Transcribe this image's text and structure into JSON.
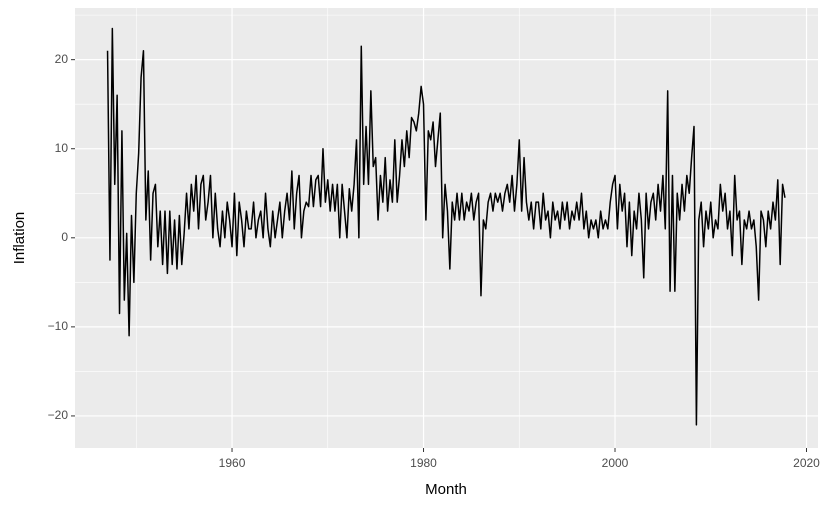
{
  "chart_data": {
    "type": "line",
    "xlabel": "Month",
    "ylabel": "Inflation",
    "xlim": [
      1943.6,
      2021.2
    ],
    "ylim": [
      -23.6,
      25.8
    ],
    "xticks": [
      1960,
      1980,
      2000,
      2020
    ],
    "xminorticks": [
      1950,
      1970,
      1990,
      2010
    ],
    "yticks": [
      {
        "value": -20,
        "label": "−20"
      },
      {
        "value": -10,
        "label": "−10"
      },
      0,
      10,
      20
    ],
    "yminorticks": [
      -15,
      -5,
      5,
      15,
      25
    ],
    "grid": true,
    "series": [
      {
        "color": "#000000",
        "x": [
          1947,
          1947.25,
          1947.5,
          1947.75,
          1948,
          1948.25,
          1948.5,
          1948.75,
          1949,
          1949.25,
          1949.5,
          1949.75,
          1950,
          1950.25,
          1950.5,
          1950.75,
          1951,
          1951.25,
          1951.5,
          1951.75,
          1952,
          1952.25,
          1952.5,
          1952.75,
          1953,
          1953.25,
          1953.5,
          1953.75,
          1954,
          1954.25,
          1954.5,
          1954.75,
          1955,
          1955.25,
          1955.5,
          1955.75,
          1956,
          1956.25,
          1956.5,
          1956.75,
          1957,
          1957.25,
          1957.5,
          1957.75,
          1958,
          1958.25,
          1958.5,
          1958.75,
          1959,
          1959.25,
          1959.5,
          1959.75,
          1960,
          1960.25,
          1960.5,
          1960.75,
          1961,
          1961.25,
          1961.5,
          1961.75,
          1962,
          1962.25,
          1962.5,
          1962.75,
          1963,
          1963.25,
          1963.5,
          1963.75,
          1964,
          1964.25,
          1964.5,
          1964.75,
          1965,
          1965.25,
          1965.5,
          1965.75,
          1966,
          1966.25,
          1966.5,
          1966.75,
          1967,
          1967.25,
          1967.5,
          1967.75,
          1968,
          1968.25,
          1968.5,
          1968.75,
          1969,
          1969.25,
          1969.5,
          1969.75,
          1970,
          1970.25,
          1970.5,
          1970.75,
          1971,
          1971.25,
          1971.5,
          1971.75,
          1972,
          1972.25,
          1972.5,
          1972.75,
          1973,
          1973.25,
          1973.5,
          1973.75,
          1974,
          1974.25,
          1974.5,
          1974.75,
          1975,
          1975.25,
          1975.5,
          1975.75,
          1976,
          1976.25,
          1976.5,
          1976.75,
          1977,
          1977.25,
          1977.5,
          1977.75,
          1978,
          1978.25,
          1978.5,
          1978.75,
          1979,
          1979.25,
          1979.5,
          1979.75,
          1980,
          1980.25,
          1980.5,
          1980.75,
          1981,
          1981.25,
          1981.5,
          1981.75,
          1982,
          1982.25,
          1982.5,
          1982.75,
          1983,
          1983.25,
          1983.5,
          1983.75,
          1984,
          1984.25,
          1984.5,
          1984.75,
          1985,
          1985.25,
          1985.5,
          1985.75,
          1986,
          1986.25,
          1986.5,
          1986.75,
          1987,
          1987.25,
          1987.5,
          1987.75,
          1988,
          1988.25,
          1988.5,
          1988.75,
          1989,
          1989.25,
          1989.5,
          1989.75,
          1990,
          1990.25,
          1990.5,
          1990.75,
          1991,
          1991.25,
          1991.5,
          1991.75,
          1992,
          1992.25,
          1992.5,
          1992.75,
          1993,
          1993.25,
          1993.5,
          1993.75,
          1994,
          1994.25,
          1994.5,
          1994.75,
          1995,
          1995.25,
          1995.5,
          1995.75,
          1996,
          1996.25,
          1996.5,
          1996.75,
          1997,
          1997.25,
          1997.5,
          1997.75,
          1998,
          1998.25,
          1998.5,
          1998.75,
          1999,
          1999.25,
          1999.5,
          1999.75,
          2000,
          2000.25,
          2000.5,
          2000.75,
          2001,
          2001.25,
          2001.5,
          2001.75,
          2002,
          2002.25,
          2002.5,
          2002.75,
          2003,
          2003.25,
          2003.5,
          2003.75,
          2004,
          2004.25,
          2004.5,
          2004.75,
          2005,
          2005.25,
          2005.5,
          2005.75,
          2006,
          2006.25,
          2006.5,
          2006.75,
          2007,
          2007.25,
          2007.5,
          2007.75,
          2008,
          2008.25,
          2008.5,
          2008.75,
          2009,
          2009.25,
          2009.5,
          2009.75,
          2010,
          2010.25,
          2010.5,
          2010.75,
          2011,
          2011.25,
          2011.5,
          2011.75,
          2012,
          2012.25,
          2012.5,
          2012.75,
          2013,
          2013.25,
          2013.5,
          2013.75,
          2014,
          2014.25,
          2014.5,
          2014.75,
          2015,
          2015.25,
          2015.5,
          2015.75,
          2016,
          2016.25,
          2016.5,
          2016.75,
          2017,
          2017.25,
          2017.5,
          2017.75
        ],
        "values": [
          21,
          -2.5,
          23.5,
          6,
          16,
          -8.5,
          12,
          -7,
          0.5,
          -11,
          2.5,
          -5,
          5,
          9.5,
          18,
          21,
          2,
          7.5,
          -2.5,
          5,
          6,
          -1,
          3,
          -3,
          3,
          -4,
          3,
          -3,
          2,
          -3.5,
          2.5,
          -3,
          0.5,
          5,
          1,
          6,
          3,
          7,
          1,
          6,
          7,
          2,
          4,
          7,
          0,
          5,
          1,
          -1,
          3,
          0,
          4,
          2,
          -1,
          5,
          -2,
          4,
          2,
          -1,
          3,
          1,
          1,
          4,
          0,
          2,
          3,
          0,
          5,
          1,
          -1,
          3,
          0,
          2,
          4,
          0,
          3,
          5,
          2,
          7.5,
          1,
          5,
          7,
          0,
          3,
          4,
          3.5,
          7,
          3.5,
          6.5,
          7,
          3.5,
          10,
          4,
          6.5,
          3,
          6,
          3,
          6,
          0,
          6,
          3,
          0,
          5.5,
          3,
          6,
          11,
          0,
          21.5,
          6,
          12.5,
          6,
          16.5,
          8,
          9,
          2,
          7,
          4,
          9,
          3,
          6.5,
          4,
          11,
          4,
          7,
          11,
          8,
          12,
          9,
          13.5,
          13,
          12,
          14,
          17,
          15,
          2,
          12,
          11,
          13,
          8,
          11,
          14,
          0,
          6,
          3,
          -3.5,
          4,
          2,
          5,
          2,
          5,
          2,
          4,
          3,
          5,
          2,
          4,
          5,
          -6.5,
          2,
          1,
          4,
          5,
          3,
          5,
          4,
          5,
          3,
          5,
          6,
          4,
          7,
          3,
          6,
          11,
          3,
          9,
          4,
          2,
          4,
          1,
          4,
          4,
          1,
          5,
          2,
          3,
          0,
          4,
          2,
          3,
          1,
          4,
          2,
          4,
          1,
          3,
          2,
          4,
          2,
          5,
          1,
          3,
          0,
          2,
          1,
          2,
          0,
          3,
          1,
          2,
          1,
          4,
          6,
          7,
          1,
          6,
          3,
          5,
          -1,
          4,
          -2,
          3,
          1,
          5,
          2,
          -4.5,
          5,
          1,
          4,
          5,
          2,
          6,
          3,
          7,
          1,
          16.5,
          -6,
          7,
          -6,
          5,
          2,
          6,
          3,
          7,
          5,
          9,
          12.5,
          -21,
          2,
          4,
          -1,
          3,
          1,
          4,
          0,
          2,
          1,
          6,
          3,
          5,
          1,
          3,
          -2,
          7,
          2,
          3,
          -3,
          2,
          1,
          3,
          1,
          2,
          -1,
          -7,
          3,
          2,
          -1,
          3,
          1,
          4,
          2,
          6.5,
          -3,
          6,
          4.5
        ]
      }
    ]
  }
}
